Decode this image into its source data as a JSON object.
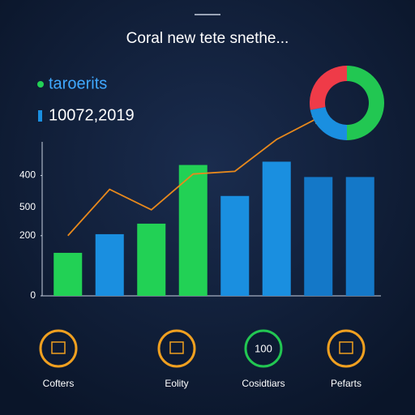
{
  "chart_data": {
    "type": "bar",
    "title": "Coral new tete snethe...",
    "legend": [
      {
        "name": "taroerits",
        "color": "#22d155"
      },
      {
        "name": "10072,2019",
        "color": "#1a8fe0"
      }
    ],
    "categories": [
      null,
      null,
      null,
      null,
      null,
      null,
      null,
      null
    ],
    "values": [
      143,
      205,
      240,
      435,
      332,
      446,
      395,
      395
    ],
    "colors": [
      "#22d155",
      "#1a8fe0",
      "#22d155",
      "#22d155",
      "#1a8fe0",
      "#1a8fe0",
      "#1478c8",
      "#1478c8"
    ],
    "line": {
      "color": "#e8891c",
      "values": [
        200,
        354,
        286,
        405,
        414,
        520,
        592,
        null
      ]
    },
    "ylim": [
      0,
      520
    ],
    "yticks": [
      0,
      200,
      400
    ],
    "y_extra_label": "500",
    "donut": {
      "values": [
        50,
        22,
        28
      ],
      "colors": [
        "#22c752",
        "#1a8fe0",
        "#ef3b48"
      ]
    },
    "icons": [
      {
        "label": "Cofters",
        "color": "#f0a020"
      },
      {
        "label": "Eolity",
        "color": "#f0a020"
      },
      {
        "label": "Cosidtiars",
        "color": "#22c752",
        "text": "100"
      },
      {
        "label": "Pefarts",
        "color": "#f0a020"
      }
    ]
  }
}
